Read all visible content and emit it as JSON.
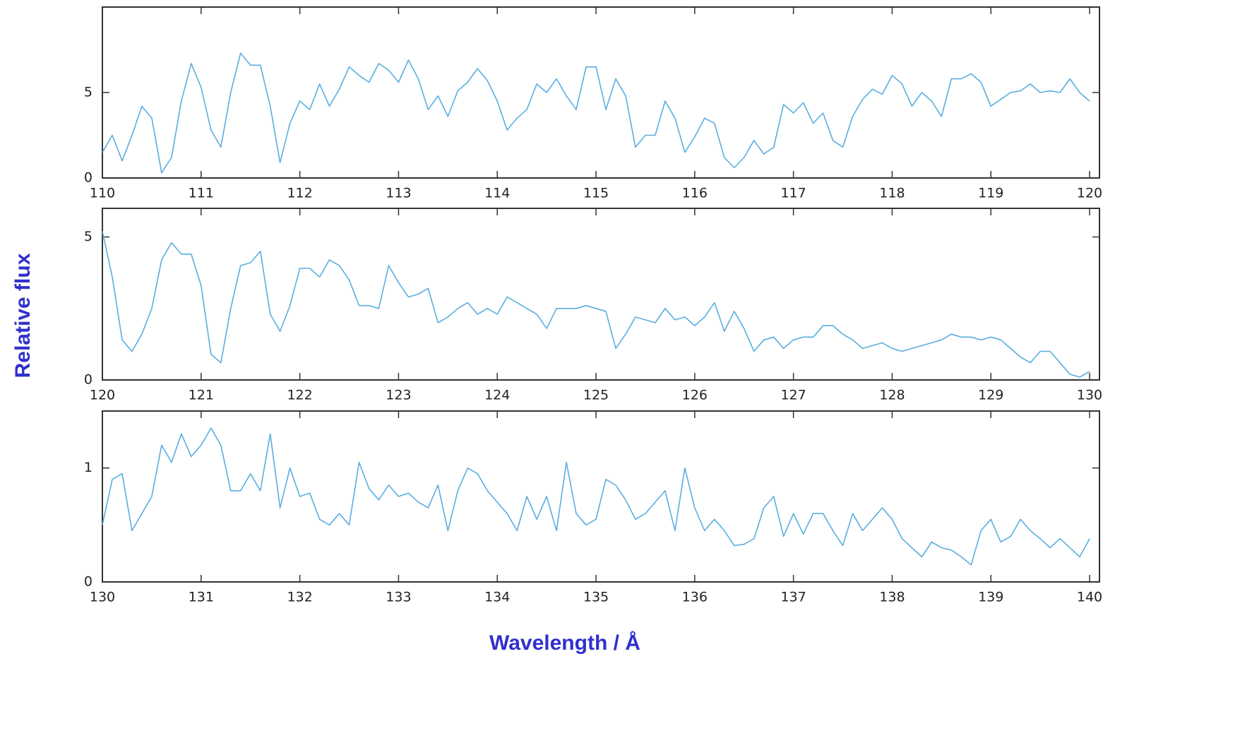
{
  "ylabel": "Relative flux",
  "xlabel": "Wavelength / Å",
  "chart_data": [
    {
      "type": "line",
      "color": "#5aaee0",
      "x": [
        110,
        110.1,
        110.2,
        110.3,
        110.4,
        110.5,
        110.6,
        110.7,
        110.8,
        110.9,
        111,
        111.1,
        111.2,
        111.3,
        111.4,
        111.5,
        111.6,
        111.7,
        111.8,
        111.9,
        112,
        112.1,
        112.2,
        112.3,
        112.4,
        112.5,
        112.6,
        112.7,
        112.8,
        112.9,
        113,
        113.1,
        113.2,
        113.3,
        113.4,
        113.5,
        113.6,
        113.7,
        113.8,
        113.9,
        114,
        114.1,
        114.2,
        114.3,
        114.4,
        114.5,
        114.6,
        114.7,
        114.8,
        114.9,
        115,
        115.1,
        115.2,
        115.3,
        115.4,
        115.5,
        115.6,
        115.7,
        115.8,
        115.9,
        116,
        116.1,
        116.2,
        116.3,
        116.4,
        116.5,
        116.6,
        116.7,
        116.8,
        116.9,
        117,
        117.1,
        117.2,
        117.3,
        117.4,
        117.5,
        117.6,
        117.7,
        117.8,
        117.9,
        118,
        118.1,
        118.2,
        118.3,
        118.4,
        118.5,
        118.6,
        118.7,
        118.8,
        118.9,
        119,
        119.1,
        119.2,
        119.3,
        119.4,
        119.5,
        119.6,
        119.7,
        119.8,
        119.9,
        120
      ],
      "values": [
        1.5,
        2.5,
        1.0,
        2.5,
        4.2,
        3.5,
        0.3,
        1.2,
        4.5,
        6.7,
        5.3,
        2.8,
        1.8,
        5.0,
        7.3,
        6.6,
        6.6,
        4.2,
        0.9,
        3.2,
        4.5,
        4.0,
        5.5,
        4.2,
        5.2,
        6.5,
        6.0,
        5.6,
        6.7,
        6.3,
        5.6,
        6.9,
        5.8,
        4.0,
        4.8,
        3.6,
        5.1,
        5.6,
        6.4,
        5.7,
        4.5,
        2.8,
        3.5,
        4.0,
        5.5,
        5.0,
        5.8,
        4.8,
        4.0,
        6.5,
        6.5,
        4.0,
        5.8,
        4.8,
        1.8,
        2.5,
        2.5,
        4.5,
        3.5,
        1.5,
        2.4,
        3.5,
        3.2,
        1.2,
        0.6,
        1.2,
        2.2,
        1.4,
        1.8,
        4.3,
        3.8,
        4.4,
        3.2,
        3.8,
        2.2,
        1.8,
        3.6,
        4.6,
        5.2,
        4.9,
        6.0,
        5.5,
        4.2,
        5.0,
        4.5,
        3.6,
        5.8,
        5.8,
        6.1,
        5.6,
        4.2,
        4.6,
        5.0,
        5.1,
        5.5,
        5.0,
        5.1,
        5.0,
        5.8,
        5.0,
        4.5
      ],
      "xlim": [
        110,
        120.1
      ],
      "xticks": [
        110,
        111,
        112,
        113,
        114,
        115,
        116,
        117,
        118,
        119,
        120
      ],
      "ylim": [
        0,
        10
      ],
      "yticks": [
        0,
        5
      ]
    },
    {
      "type": "line",
      "color": "#5aaee0",
      "x": [
        120,
        120.1,
        120.2,
        120.3,
        120.4,
        120.5,
        120.6,
        120.7,
        120.8,
        120.9,
        121,
        121.1,
        121.2,
        121.3,
        121.4,
        121.5,
        121.6,
        121.7,
        121.8,
        121.9,
        122,
        122.1,
        122.2,
        122.3,
        122.4,
        122.5,
        122.6,
        122.7,
        122.8,
        122.9,
        123,
        123.1,
        123.2,
        123.3,
        123.4,
        123.5,
        123.6,
        123.7,
        123.8,
        123.9,
        124,
        124.1,
        124.2,
        124.3,
        124.4,
        124.5,
        124.6,
        124.7,
        124.8,
        124.9,
        125,
        125.1,
        125.2,
        125.3,
        125.4,
        125.5,
        125.6,
        125.7,
        125.8,
        125.9,
        126,
        126.1,
        126.2,
        126.3,
        126.4,
        126.5,
        126.6,
        126.7,
        126.8,
        126.9,
        127,
        127.1,
        127.2,
        127.3,
        127.4,
        127.5,
        127.6,
        127.7,
        127.8,
        127.9,
        128,
        128.1,
        128.2,
        128.3,
        128.4,
        128.5,
        128.6,
        128.7,
        128.8,
        128.9,
        129,
        129.1,
        129.2,
        129.3,
        129.4,
        129.5,
        129.6,
        129.7,
        129.8,
        129.9,
        130
      ],
      "values": [
        5.2,
        3.6,
        1.4,
        1.0,
        1.6,
        2.5,
        4.2,
        4.8,
        4.4,
        4.4,
        3.3,
        0.9,
        0.6,
        2.5,
        4.0,
        4.1,
        4.5,
        2.3,
        1.7,
        2.6,
        3.9,
        3.9,
        3.6,
        4.2,
        4.0,
        3.5,
        2.6,
        2.6,
        2.5,
        4.0,
        3.4,
        2.9,
        3.0,
        3.2,
        2.0,
        2.2,
        2.5,
        2.7,
        2.3,
        2.5,
        2.3,
        2.9,
        2.7,
        2.5,
        2.3,
        1.8,
        2.5,
        2.5,
        2.5,
        2.6,
        2.5,
        2.4,
        1.1,
        1.6,
        2.2,
        2.1,
        2.0,
        2.5,
        2.1,
        2.2,
        1.9,
        2.2,
        2.7,
        1.7,
        2.4,
        1.8,
        1.0,
        1.4,
        1.5,
        1.1,
        1.4,
        1.5,
        1.5,
        1.9,
        1.9,
        1.6,
        1.4,
        1.1,
        1.2,
        1.3,
        1.1,
        1.0,
        1.1,
        1.2,
        1.3,
        1.4,
        1.6,
        1.5,
        1.5,
        1.4,
        1.5,
        1.4,
        1.1,
        0.8,
        0.6,
        1.0,
        1.0,
        0.6,
        0.2,
        0.1,
        0.3
      ],
      "xlim": [
        120,
        130.1
      ],
      "xticks": [
        120,
        121,
        122,
        123,
        124,
        125,
        126,
        127,
        128,
        129,
        130
      ],
      "ylim": [
        0,
        6
      ],
      "yticks": [
        0,
        5
      ]
    },
    {
      "type": "line",
      "color": "#5aaee0",
      "x": [
        130,
        130.1,
        130.2,
        130.3,
        130.4,
        130.5,
        130.6,
        130.7,
        130.8,
        130.9,
        131,
        131.1,
        131.2,
        131.3,
        131.4,
        131.5,
        131.6,
        131.7,
        131.8,
        131.9,
        132,
        132.1,
        132.2,
        132.3,
        132.4,
        132.5,
        132.6,
        132.7,
        132.8,
        132.9,
        133,
        133.1,
        133.2,
        133.3,
        133.4,
        133.5,
        133.6,
        133.7,
        133.8,
        133.9,
        134,
        134.1,
        134.2,
        134.3,
        134.4,
        134.5,
        134.6,
        134.7,
        134.8,
        134.9,
        135,
        135.1,
        135.2,
        135.3,
        135.4,
        135.5,
        135.6,
        135.7,
        135.8,
        135.9,
        136,
        136.1,
        136.2,
        136.3,
        136.4,
        136.5,
        136.6,
        136.7,
        136.8,
        136.9,
        137,
        137.1,
        137.2,
        137.3,
        137.4,
        137.5,
        137.6,
        137.7,
        137.8,
        137.9,
        138,
        138.1,
        138.2,
        138.3,
        138.4,
        138.5,
        138.6,
        138.7,
        138.8,
        138.9,
        139,
        139.1,
        139.2,
        139.3,
        139.4,
        139.5,
        139.6,
        139.7,
        139.8,
        139.9,
        140
      ],
      "values": [
        0.5,
        0.9,
        0.95,
        0.45,
        0.6,
        0.75,
        1.2,
        1.05,
        1.3,
        1.1,
        1.2,
        1.35,
        1.2,
        0.8,
        0.8,
        0.95,
        0.8,
        1.3,
        0.65,
        1.0,
        0.75,
        0.78,
        0.55,
        0.5,
        0.6,
        0.5,
        1.05,
        0.82,
        0.72,
        0.85,
        0.75,
        0.78,
        0.7,
        0.65,
        0.85,
        0.45,
        0.8,
        1.0,
        0.95,
        0.8,
        0.7,
        0.6,
        0.45,
        0.75,
        0.55,
        0.75,
        0.45,
        1.05,
        0.6,
        0.5,
        0.55,
        0.9,
        0.85,
        0.72,
        0.55,
        0.6,
        0.7,
        0.8,
        0.45,
        1.0,
        0.65,
        0.45,
        0.55,
        0.45,
        0.32,
        0.33,
        0.38,
        0.65,
        0.75,
        0.4,
        0.6,
        0.42,
        0.6,
        0.6,
        0.45,
        0.32,
        0.6,
        0.45,
        0.55,
        0.65,
        0.55,
        0.38,
        0.3,
        0.22,
        0.35,
        0.3,
        0.28,
        0.22,
        0.15,
        0.45,
        0.55,
        0.35,
        0.4,
        0.55,
        0.45,
        0.38,
        0.3,
        0.38,
        0.3,
        0.22,
        0.38
      ],
      "xlim": [
        130,
        140.1
      ],
      "xticks": [
        130,
        131,
        132,
        133,
        134,
        135,
        136,
        137,
        138,
        139,
        140
      ],
      "ylim": [
        0,
        1.5
      ],
      "yticks": [
        0,
        1
      ]
    }
  ]
}
